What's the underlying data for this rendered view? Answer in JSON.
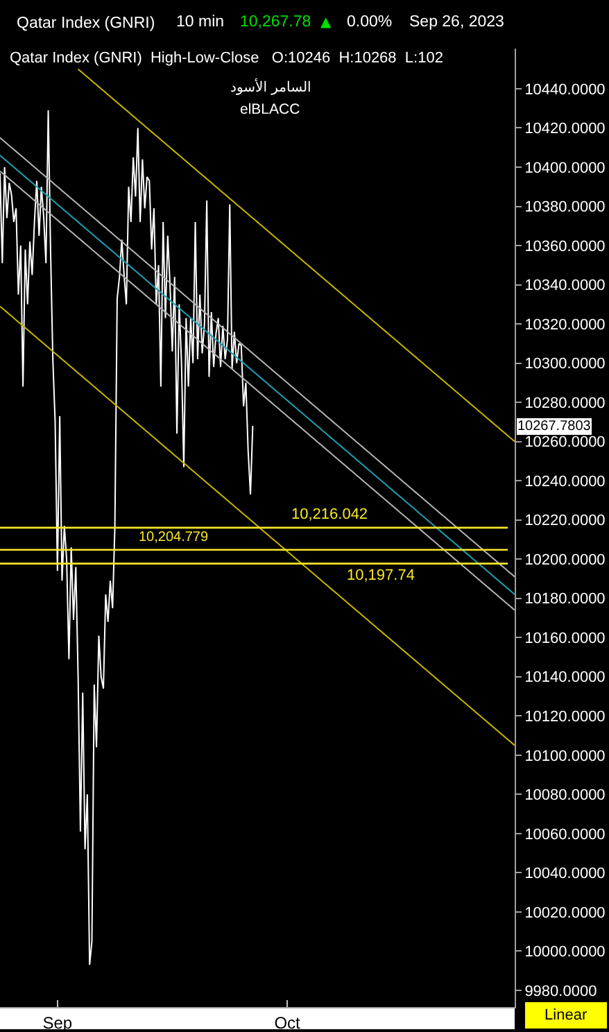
{
  "chart_data": {
    "type": "line",
    "title": "Qatar Index (GNRI)",
    "subtitle": "Qatar Index (GNRI)  High-Low-Close   O:10246  H:10268  L:102",
    "annotations": [
      "10 min",
      "10,267.78",
      "▲",
      "0.00%",
      "Sep 26, 2023",
      "السامر الأسود",
      "elBLACC",
      "Linear",
      "10267.7803"
    ],
    "categories": [
      null,
      null,
      null,
      null,
      null,
      null,
      null,
      null,
      null,
      null,
      null,
      null,
      null,
      null,
      null,
      null,
      null,
      null,
      null,
      null,
      null,
      null,
      null,
      null,
      null,
      "Sep",
      null,
      null,
      null,
      null,
      null,
      null,
      null,
      null,
      null,
      null,
      null,
      null,
      null,
      null,
      null,
      null,
      null,
      null,
      null,
      null,
      null,
      null,
      null,
      null,
      null,
      null,
      null,
      null,
      null,
      null,
      null,
      null,
      null,
      null,
      null,
      null,
      null,
      null,
      null,
      null,
      null,
      null,
      null,
      null,
      null,
      null,
      null,
      null,
      null,
      null,
      null,
      null,
      null,
      null,
      null,
      null,
      null,
      null,
      null,
      null,
      null,
      null,
      null,
      null,
      null,
      null,
      null,
      null,
      null,
      null,
      null,
      null,
      null,
      null,
      null,
      null,
      null,
      null,
      null,
      null,
      null,
      null,
      null,
      null,
      null,
      null,
      null,
      null,
      null,
      null,
      null,
      null,
      null,
      null,
      null,
      null,
      null,
      null,
      null,
      "Oct",
      null,
      null,
      null,
      null,
      null,
      null,
      null,
      null,
      null,
      null,
      null,
      null,
      null,
      null,
      null,
      null,
      null,
      null,
      null,
      null,
      null,
      null,
      null,
      null,
      null,
      null,
      null,
      null,
      null,
      null,
      null,
      null,
      null,
      null,
      null,
      null,
      null,
      null,
      null,
      null,
      null,
      null,
      null,
      null,
      null,
      null,
      null,
      null,
      null,
      null,
      null,
      null,
      null,
      null,
      null,
      null,
      null,
      null,
      null,
      null,
      null,
      null,
      null,
      null,
      null,
      null,
      null,
      null,
      null,
      null,
      null,
      null,
      null,
      null,
      null,
      null,
      null,
      null,
      null,
      null,
      null,
      null,
      null,
      null,
      null,
      null,
      null,
      null,
      null,
      null,
      null,
      null,
      null,
      null,
      null,
      null,
      null,
      null,
      null
    ],
    "series": [
      {
        "color": "#ffffff",
        "values": [
          10397,
          10351,
          10400,
          10374,
          10392,
          10386,
          10372,
          10379,
          10335,
          10360,
          10288,
          10358,
          10330,
          10362,
          10345,
          10372,
          10393,
          10365,
          10390,
          10375,
          10351,
          10429,
          10358,
          10302,
          10270,
          10194,
          10273,
          10189,
          10217,
          10200,
          10149,
          10206,
          10169,
          10196,
          10140,
          10061,
          10132,
          10052,
          10080,
          9993,
          10005,
          10136,
          10104,
          10161,
          10140,
          10134,
          10182,
          10168,
          10189,
          10175,
          10217,
          10333,
          10344,
          10363,
          10345,
          10330,
          10390,
          10372,
          10405,
          10385,
          10420,
          10372,
          10404,
          10379,
          10395,
          10393,
          10358,
          10379,
          10330,
          10350,
          10288,
          10372,
          10323,
          10365,
          10340,
          10306,
          10344,
          10264,
          10330,
          10300,
          10247,
          10323,
          10288,
          10323,
          10300,
          10372,
          10302,
          10335,
          10305,
          10320,
          10383,
          10293,
          10326,
          10298,
          10315,
          10323,
          10298,
          10319,
          10302,
          10312,
          10381,
          10297,
          10316,
          10300,
          10310,
          10309,
          10278,
          10290,
          10255,
          10233,
          10268,
          null,
          null,
          null,
          null,
          null,
          null,
          null,
          null,
          null,
          null,
          null,
          null,
          null,
          null,
          null,
          null,
          null,
          null,
          null,
          null,
          null,
          null,
          null,
          null,
          null,
          null,
          null,
          null,
          null,
          null,
          null,
          null,
          null,
          null,
          null,
          null,
          null,
          null,
          null,
          null,
          null,
          null,
          null,
          null,
          null,
          null,
          null,
          null,
          null,
          null,
          null,
          null,
          null,
          null,
          null,
          null,
          null,
          null,
          null,
          null,
          null,
          null,
          null,
          null,
          null,
          null,
          null,
          null,
          null,
          null,
          null,
          null,
          null,
          null,
          null,
          null,
          null,
          null,
          null,
          null,
          null,
          null,
          null,
          null,
          null,
          null,
          null,
          null,
          null,
          null,
          null,
          null,
          null,
          null,
          null,
          null,
          null,
          null,
          null,
          null,
          null,
          null,
          null,
          null,
          null,
          null,
          null,
          null,
          null,
          null,
          null,
          null,
          null,
          null
        ]
      },
      {
        "type": "line",
        "color": "#c8b400",
        "values": [
          null,
          null,
          null,
          null,
          null,
          null,
          null,
          null,
          null,
          null,
          null,
          null,
          null,
          null,
          null,
          null,
          null,
          null,
          null,
          null,
          null,
          null,
          null,
          null,
          null,
          null,
          null,
          null,
          null,
          null,
          null,
          null,
          null,
          null,
          10450,
          10449,
          10448,
          10447,
          10446,
          10445,
          10444,
          10443,
          10442,
          10441,
          10440,
          10439,
          10438,
          10437,
          10436,
          10435,
          10434,
          10433,
          10432,
          10431,
          10430,
          10429,
          10428,
          10427,
          10426,
          10425,
          10424,
          10423,
          10422,
          10421,
          10420,
          10419,
          10418,
          10417,
          10416,
          10415,
          10414,
          10413,
          10412,
          10411,
          10410,
          10409,
          10408,
          10407,
          10406,
          10405,
          10404,
          10403,
          10402,
          10401,
          10400,
          10399,
          10398,
          10397,
          10396,
          10395,
          10394,
          10393,
          10392,
          10391,
          10390,
          10389,
          10388,
          10387,
          10386,
          10385,
          10384,
          10383,
          10382,
          10381,
          10380,
          10379,
          10378,
          10377,
          10376,
          10375,
          10374,
          10373,
          10372,
          10371,
          10370,
          10369,
          10368,
          10367,
          10366,
          10365,
          10364,
          10363,
          10362,
          10361,
          10360,
          10359,
          10358,
          10357,
          10356,
          10355,
          10354,
          10353,
          10352,
          10351,
          10350,
          10349,
          10348,
          10347,
          10346,
          10345,
          10344,
          10343,
          10342,
          10341,
          10340,
          10339,
          10338,
          10337,
          10336,
          10335,
          10334,
          10333,
          10332,
          10331,
          10330,
          10329,
          10328,
          10327,
          10326,
          10325,
          10324,
          10323,
          10322,
          10321,
          10320,
          10319,
          10318,
          10317,
          10316,
          10315,
          10314,
          10313,
          10312,
          10311,
          10310,
          10309,
          10308,
          10307,
          10306,
          10305,
          10304,
          10303,
          10302,
          10301,
          10300,
          10299,
          10298,
          10297,
          10296,
          10295,
          10294,
          10293,
          10292,
          10291,
          10290,
          10289,
          10288,
          10287,
          10286,
          10285,
          10284,
          10283,
          10282,
          10281,
          10280,
          10279,
          10278,
          10277,
          10276,
          10275,
          10274,
          10273,
          10272,
          10271,
          10270,
          10269,
          10268,
          10267,
          10266,
          10265,
          10264,
          10263,
          10262,
          10261,
          10260
        ]
      },
      {
        "type": "line",
        "color": "#c8b400",
        "values": [
          10329,
          10328,
          10327,
          10326,
          10325,
          10324,
          10323,
          10322,
          10321,
          10320,
          10319,
          10318,
          10317,
          10316,
          10315,
          10314,
          10313,
          10312,
          10311,
          10310,
          10309,
          10308,
          10307,
          10306,
          10305,
          10304,
          10303,
          10302,
          10301,
          10300,
          10299,
          10298,
          10297,
          10296,
          10295,
          10294,
          10293,
          10292,
          10291,
          10290,
          10289,
          10288,
          10287,
          10286,
          10285,
          10284,
          10283,
          10282,
          10281,
          10280,
          10279,
          10278,
          10277,
          10276,
          10275,
          10274,
          10273,
          10272,
          10271,
          10270,
          10269,
          10268,
          10267,
          10266,
          10265,
          10264,
          10263,
          10262,
          10261,
          10260,
          10259,
          10258,
          10257,
          10256,
          10255,
          10254,
          10253,
          10252,
          10251,
          10250,
          10249,
          10248,
          10247,
          10246,
          10245,
          10244,
          10243,
          10242,
          10241,
          10240,
          10239,
          10238,
          10237,
          10236,
          10235,
          10234,
          10233,
          10232,
          10231,
          10230,
          10229,
          10228,
          10227,
          10226,
          10225,
          10224,
          10223,
          10222,
          10221,
          10220,
          10219,
          10218,
          10217,
          10216,
          10215,
          10214,
          10213,
          10212,
          10211,
          10210,
          10209,
          10208,
          10207,
          10206,
          10205,
          10204,
          10203,
          10202,
          10201,
          10200,
          10199,
          10198,
          10197,
          10196,
          10195,
          10194,
          10193,
          10192,
          10191,
          10190,
          10189,
          10188,
          10187,
          10186,
          10185,
          10184,
          10183,
          10182,
          10181,
          10180,
          10179,
          10178,
          10177,
          10176,
          10175,
          10174,
          10173,
          10172,
          10171,
          10170,
          10169,
          10168,
          10167,
          10166,
          10165,
          10164,
          10163,
          10162,
          10161,
          10160,
          10159,
          10158,
          10157,
          10156,
          10155,
          10154,
          10153,
          10152,
          10151,
          10150,
          10149,
          10148,
          10147,
          10146,
          10145,
          10144,
          10143,
          10142,
          10141,
          10140,
          10139,
          10138,
          10137,
          10136,
          10135,
          10134,
          10133,
          10132,
          10131,
          10130,
          10129,
          10128,
          10127,
          10126,
          10125,
          10124,
          10123,
          10122,
          10121,
          10120,
          10119,
          10118,
          10117,
          10116,
          10115,
          10114,
          10113,
          10112,
          10111,
          10110,
          10109,
          10108,
          10107,
          10106,
          10105
        ]
      },
      {
        "type": "line",
        "color": "#b4b4b4",
        "values": [
          10415,
          10414,
          10413,
          10412,
          10411,
          10410,
          10409,
          10408,
          10407,
          10406,
          10405,
          10404,
          10403,
          10402,
          10401,
          10400,
          10399,
          10398,
          10397,
          10396,
          10395,
          10394,
          10393,
          10392,
          10391,
          10390,
          10389,
          10388,
          10387,
          10386,
          10385,
          10384,
          10383,
          10382,
          10381,
          10380,
          10379,
          10378,
          10377,
          10376,
          10375,
          10374,
          10373,
          10372,
          10371,
          10370,
          10369,
          10368,
          10367,
          10366,
          10365,
          10364,
          10363,
          10362,
          10361,
          10360,
          10359,
          10358,
          10357,
          10356,
          10355,
          10354,
          10353,
          10352,
          10351,
          10350,
          10349,
          10348,
          10347,
          10346,
          10345,
          10344,
          10343,
          10342,
          10341,
          10340,
          10339,
          10338,
          10337,
          10336,
          10335,
          10334,
          10333,
          10332,
          10331,
          10330,
          10329,
          10328,
          10327,
          10326,
          10325,
          10324,
          10323,
          10322,
          10321,
          10320,
          10319,
          10318,
          10317,
          10316,
          10315,
          10314,
          10313,
          10312,
          10311,
          10310,
          10309,
          10308,
          10307,
          10306,
          10305,
          10304,
          10303,
          10302,
          10301,
          10300,
          10299,
          10298,
          10297,
          10296,
          10295,
          10294,
          10293,
          10292,
          10291,
          10290,
          10289,
          10288,
          10287,
          10286,
          10285,
          10284,
          10283,
          10282,
          10281,
          10280,
          10279,
          10278,
          10277,
          10276,
          10275,
          10274,
          10273,
          10272,
          10271,
          10270,
          10269,
          10268,
          10267,
          10266,
          10265,
          10264,
          10263,
          10262,
          10261,
          10260,
          10259,
          10258,
          10257,
          10256,
          10255,
          10254,
          10253,
          10252,
          10251,
          10250,
          10249,
          10248,
          10247,
          10246,
          10245,
          10244,
          10243,
          10242,
          10241,
          10240,
          10239,
          10238,
          10237,
          10236,
          10235,
          10234,
          10233,
          10232,
          10231,
          10230,
          10229,
          10228,
          10227,
          10226,
          10225,
          10224,
          10223,
          10222,
          10221,
          10220,
          10219,
          10218,
          10217,
          10216,
          10215,
          10214,
          10213,
          10212,
          10211,
          10210,
          10209,
          10208,
          10207,
          10206,
          10205,
          10204,
          10203,
          10202,
          10201,
          10200,
          10199,
          10198,
          10197,
          10196,
          10195,
          10194,
          10193,
          10192,
          10191
        ]
      },
      {
        "type": "line",
        "color": "#1ca0b4",
        "values": [
          10406,
          10405,
          10404,
          10403,
          10402,
          10401,
          10400,
          10399,
          10398,
          10397,
          10396,
          10395,
          10394,
          10393,
          10392,
          10391,
          10390,
          10389,
          10388,
          10387,
          10386,
          10385,
          10384,
          10383,
          10382,
          10381,
          10380,
          10379,
          10378,
          10377,
          10376,
          10375,
          10374,
          10373,
          10372,
          10371,
          10370,
          10369,
          10368,
          10367,
          10366,
          10365,
          10364,
          10363,
          10362,
          10361,
          10360,
          10359,
          10358,
          10357,
          10356,
          10355,
          10354,
          10353,
          10352,
          10351,
          10350,
          10349,
          10348,
          10347,
          10346,
          10345,
          10344,
          10343,
          10342,
          10341,
          10340,
          10339,
          10338,
          10337,
          10336,
          10335,
          10334,
          10333,
          10332,
          10331,
          10330,
          10329,
          10328,
          10327,
          10326,
          10325,
          10324,
          10323,
          10322,
          10321,
          10320,
          10319,
          10318,
          10317,
          10316,
          10315,
          10314,
          10313,
          10312,
          10311,
          10310,
          10309,
          10308,
          10307,
          10306,
          10305,
          10304,
          10303,
          10302,
          10301,
          10300,
          10299,
          10298,
          10297,
          10296,
          10295,
          10294,
          10293,
          10292,
          10291,
          10290,
          10289,
          10288,
          10287,
          10286,
          10285,
          10284,
          10283,
          10282,
          10281,
          10280,
          10279,
          10278,
          10277,
          10276,
          10275,
          10274,
          10273,
          10272,
          10271,
          10270,
          10269,
          10268,
          10267,
          10266,
          10265,
          10264,
          10263,
          10262,
          10261,
          10260,
          10259,
          10258,
          10257,
          10256,
          10255,
          10254,
          10253,
          10252,
          10251,
          10250,
          10249,
          10248,
          10247,
          10246,
          10245,
          10244,
          10243,
          10242,
          10241,
          10240,
          10239,
          10238,
          10237,
          10236,
          10235,
          10234,
          10233,
          10232,
          10231,
          10230,
          10229,
          10228,
          10227,
          10226,
          10225,
          10224,
          10223,
          10222,
          10221,
          10220,
          10219,
          10218,
          10217,
          10216,
          10215,
          10214,
          10213,
          10212,
          10211,
          10210,
          10209,
          10208,
          10207,
          10206,
          10205,
          10204,
          10203,
          10202,
          10201,
          10200,
          10199,
          10198,
          10197,
          10196,
          10195,
          10194,
          10193,
          10192,
          10191,
          10190,
          10189,
          10188,
          10187,
          10186,
          10185,
          10184,
          10183,
          10182
        ]
      },
      {
        "type": "line",
        "color": "#b4b4b4",
        "values": [
          10398,
          10397,
          10396,
          10395,
          10394,
          10393,
          10392,
          10391,
          10390,
          10389,
          10388,
          10387,
          10386,
          10385,
          10384,
          10383,
          10382,
          10381,
          10380,
          10379,
          10378,
          10377,
          10376,
          10375,
          10374,
          10373,
          10372,
          10371,
          10370,
          10369,
          10368,
          10367,
          10366,
          10365,
          10364,
          10363,
          10362,
          10361,
          10360,
          10359,
          10358,
          10357,
          10356,
          10355,
          10354,
          10353,
          10352,
          10351,
          10350,
          10349,
          10348,
          10347,
          10346,
          10345,
          10344,
          10343,
          10342,
          10341,
          10340,
          10339,
          10338,
          10337,
          10336,
          10335,
          10334,
          10333,
          10332,
          10331,
          10330,
          10329,
          10328,
          10327,
          10326,
          10325,
          10324,
          10323,
          10322,
          10321,
          10320,
          10319,
          10318,
          10317,
          10316,
          10315,
          10314,
          10313,
          10312,
          10311,
          10310,
          10309,
          10308,
          10307,
          10306,
          10305,
          10304,
          10303,
          10302,
          10301,
          10300,
          10299,
          10298,
          10297,
          10296,
          10295,
          10294,
          10293,
          10292,
          10291,
          10290,
          10289,
          10288,
          10287,
          10286,
          10285,
          10284,
          10283,
          10282,
          10281,
          10280,
          10279,
          10278,
          10277,
          10276,
          10275,
          10274,
          10273,
          10272,
          10271,
          10270,
          10269,
          10268,
          10267,
          10266,
          10265,
          10264,
          10263,
          10262,
          10261,
          10260,
          10259,
          10258,
          10257,
          10256,
          10255,
          10254,
          10253,
          10252,
          10251,
          10250,
          10249,
          10248,
          10247,
          10246,
          10245,
          10244,
          10243,
          10242,
          10241,
          10240,
          10239,
          10238,
          10237,
          10236,
          10235,
          10234,
          10233,
          10232,
          10231,
          10230,
          10229,
          10228,
          10227,
          10226,
          10225,
          10224,
          10223,
          10222,
          10221,
          10220,
          10219,
          10218,
          10217,
          10216,
          10215,
          10214,
          10213,
          10212,
          10211,
          10210,
          10209,
          10208,
          10207,
          10206,
          10205,
          10204,
          10203,
          10202,
          10201,
          10200,
          10199,
          10198,
          10197,
          10196,
          10195,
          10194,
          10193,
          10192,
          10191,
          10190,
          10189,
          10188,
          10187,
          10186,
          10185,
          10184,
          10183,
          10182,
          10181,
          10180,
          10179,
          10178,
          10177,
          10176,
          10175,
          10174
        ]
      }
    ],
    "ref_lines": [
      {
        "axis": "y",
        "value": 10216.042,
        "label": "10,216.042",
        "color": "#f5e62a"
      },
      {
        "axis": "y",
        "value": 10204.779,
        "label": "10,204.779",
        "color": "#f5e62a"
      },
      {
        "axis": "y",
        "value": 10197.74,
        "label": "10,197.74",
        "color": "#f5e62a"
      }
    ],
    "ylim": [
      9971.5,
      10460.5
    ],
    "yticks": [
      {
        "value": 9980,
        "label": "9980.0000"
      },
      {
        "value": 10000,
        "label": "10000.0000"
      },
      {
        "value": 10020,
        "label": "10020.0000"
      },
      {
        "value": 10040,
        "label": "10040.0000"
      },
      {
        "value": 10060,
        "label": "10060.0000"
      },
      {
        "value": 10080,
        "label": "10080.0000"
      },
      {
        "value": 10100,
        "label": "10100.0000"
      },
      {
        "value": 10120,
        "label": "10120.0000"
      },
      {
        "value": 10140,
        "label": "10140.0000"
      },
      {
        "value": 10160,
        "label": "10160.0000"
      },
      {
        "value": 10180,
        "label": "10180.0000"
      },
      {
        "value": 10200,
        "label": "10200.0000"
      },
      {
        "value": 10220,
        "label": "10220.0000"
      },
      {
        "value": 10240,
        "label": "10240.0000"
      },
      {
        "value": 10260,
        "label": "10260.0000"
      },
      {
        "value": 10280,
        "label": "10280.0000"
      },
      {
        "value": 10300,
        "label": "10300.0000"
      },
      {
        "value": 10320,
        "label": "10320.0000"
      },
      {
        "value": 10340,
        "label": "10340.0000"
      },
      {
        "value": 10360,
        "label": "10360.0000"
      },
      {
        "value": 10380,
        "label": "10380.0000"
      },
      {
        "value": 10400,
        "label": "10400.0000"
      },
      {
        "value": 10420,
        "label": "10420.0000"
      },
      {
        "value": 10440,
        "label": "10440.0000"
      }
    ]
  }
}
